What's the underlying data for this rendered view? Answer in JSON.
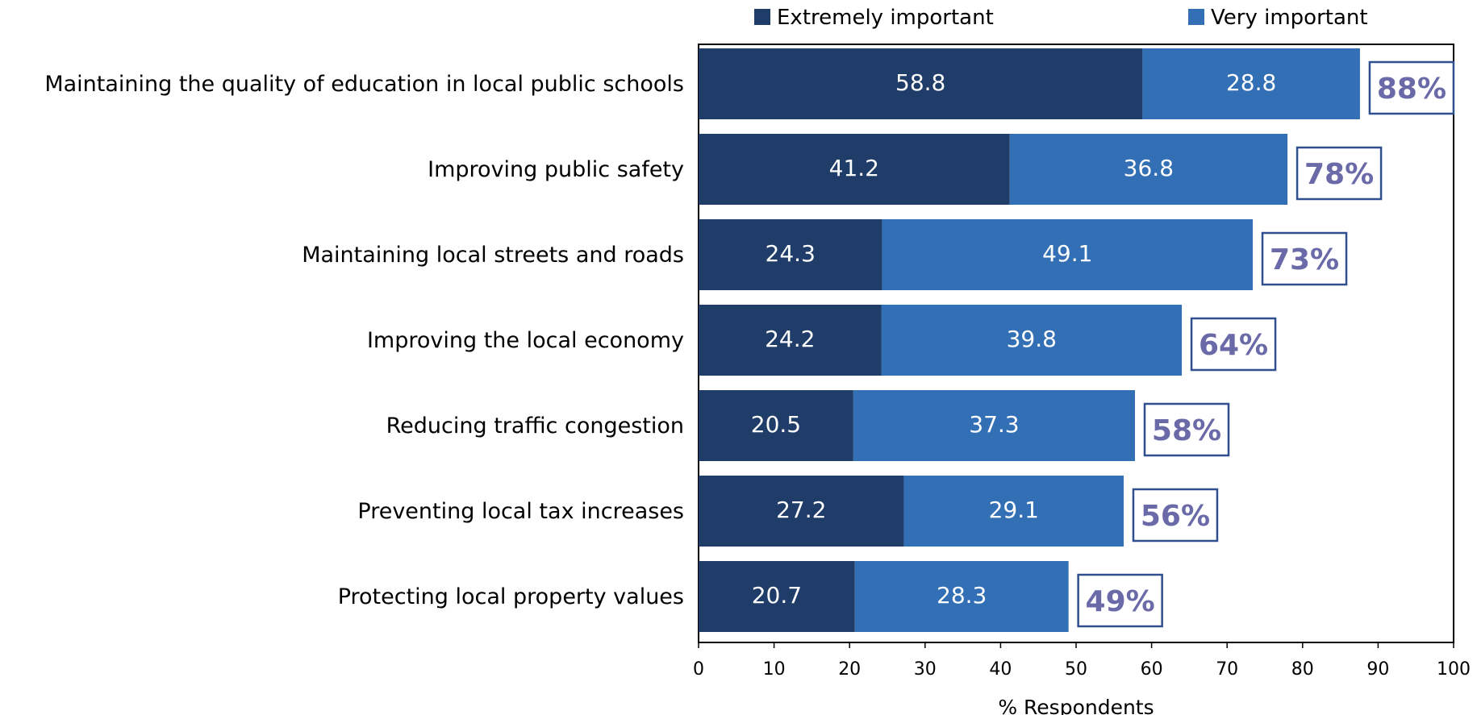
{
  "chart_data": {
    "type": "bar",
    "orientation": "horizontal",
    "stacked": true,
    "categories": [
      "Maintaining the quality of education in local public schools",
      "Improving public safety",
      "Maintaining local streets and roads",
      "Improving the local economy",
      "Reducing traffic congestion",
      "Preventing local tax increases",
      "Protecting local property values"
    ],
    "series": [
      {
        "name": "Extremely important",
        "color": "#1f3d68",
        "values": [
          58.8,
          41.2,
          24.3,
          24.2,
          20.5,
          27.2,
          20.7
        ]
      },
      {
        "name": "Very important",
        "color": "#336fb5",
        "values": [
          28.8,
          36.8,
          49.1,
          39.8,
          37.3,
          29.1,
          28.3
        ]
      }
    ],
    "totals": [
      "88%",
      "78%",
      "73%",
      "64%",
      "58%",
      "56%",
      "49%"
    ],
    "total_label_color": "#6a6aa8",
    "total_box_color": "#2f4f8f",
    "xlabel": "% Respondents",
    "xlim": [
      0,
      100
    ],
    "xticks": [
      0,
      10,
      20,
      30,
      40,
      50,
      60,
      70,
      80,
      90,
      100
    ],
    "legend_position": "top",
    "grid": false
  }
}
